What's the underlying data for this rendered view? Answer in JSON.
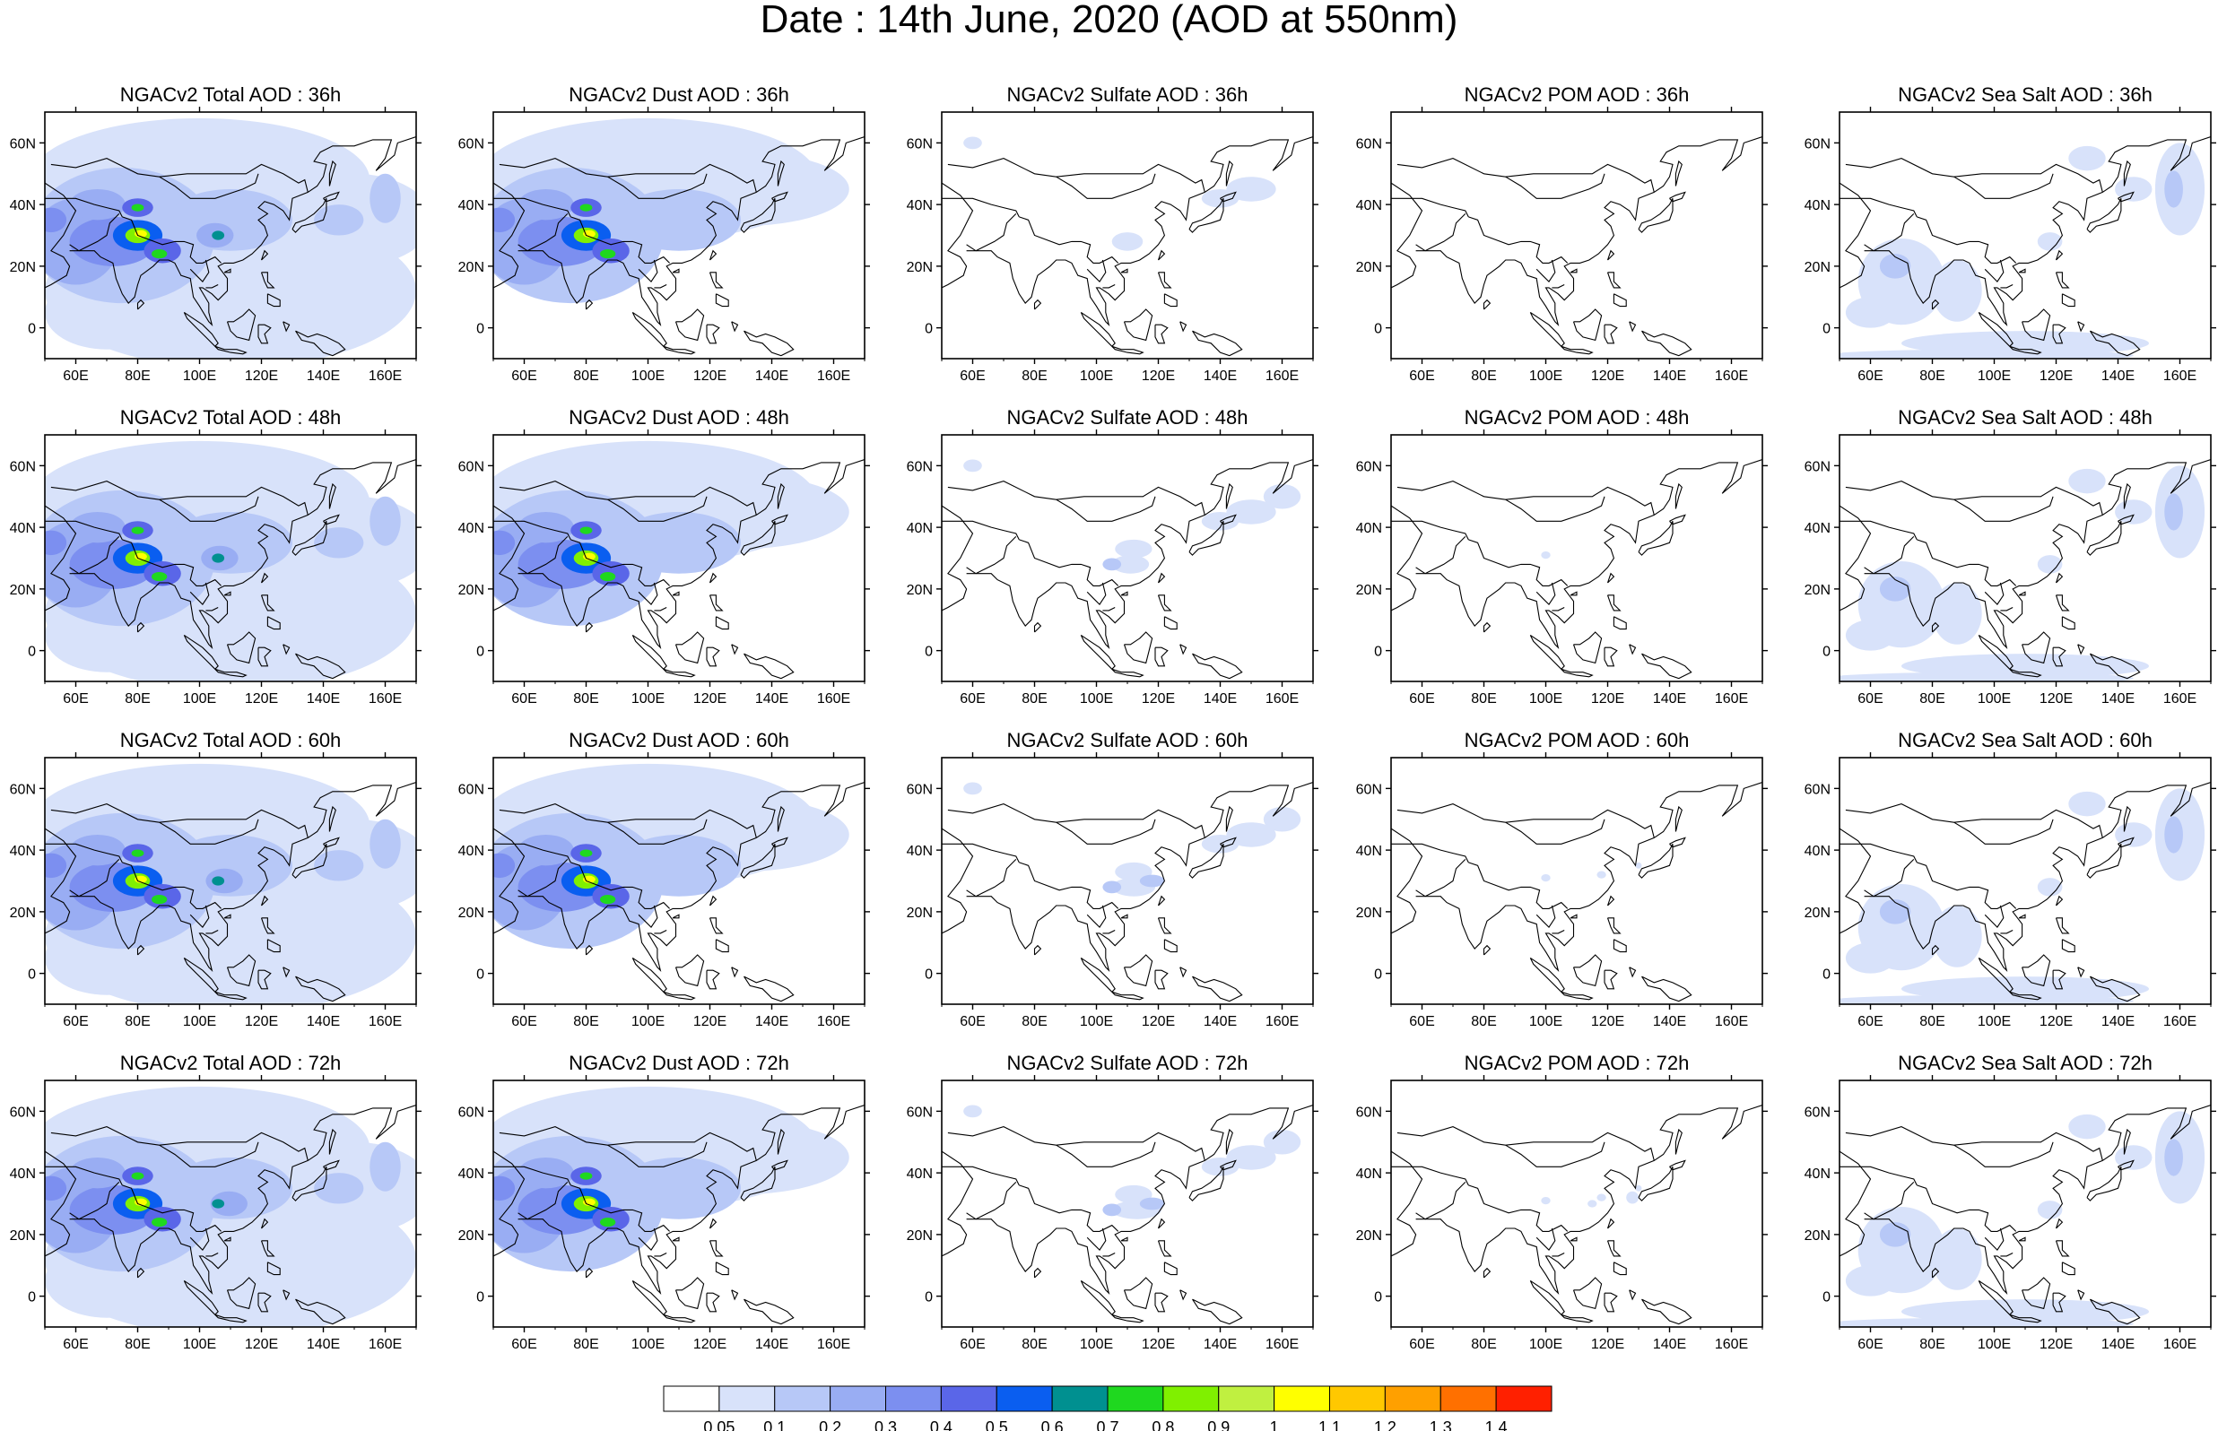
{
  "title": "Date : 14th June, 2020 (AOD at 550nm)",
  "rows": [
    "36h",
    "48h",
    "60h",
    "72h"
  ],
  "columns": [
    {
      "key": "total",
      "prefix": "NGACv2 Total AOD : "
    },
    {
      "key": "dust",
      "prefix": "NGACv2 Dust AOD : "
    },
    {
      "key": "sulfate",
      "prefix": "NGACv2 Sulfate AOD : "
    },
    {
      "key": "pom",
      "prefix": "NGACv2 POM AOD : "
    },
    {
      "key": "seasalt",
      "prefix": "NGACv2 Sea Salt AOD : ",
      "prefix_72h": "NGACv2 Sea Salt  AOD : "
    }
  ],
  "map_extent": {
    "lon": [
      50,
      170
    ],
    "lat": [
      -10,
      70
    ]
  },
  "lon_ticks": [
    "60E",
    "80E",
    "100E",
    "120E",
    "140E",
    "160E"
  ],
  "lat_ticks": [
    "60N",
    "40N",
    "20N",
    "0"
  ],
  "colorbar": {
    "labels": [
      "0.05",
      "0.1",
      "0.2",
      "0.3",
      "0.4",
      "0.5",
      "0.6",
      "0.7",
      "0.8",
      "0.9",
      "1",
      "1.1",
      "1.2",
      "1.3",
      "1.4"
    ],
    "colors": [
      "#ffffff",
      "#d8e2fa",
      "#b7c8f7",
      "#99adf3",
      "#7c8ff0",
      "#5a66e8",
      "#0a5ef0",
      "#009090",
      "#1fd81f",
      "#80f000",
      "#c0f040",
      "#ffff00",
      "#ffc800",
      "#ffa000",
      "#ff7000",
      "#ff2000"
    ]
  }
}
